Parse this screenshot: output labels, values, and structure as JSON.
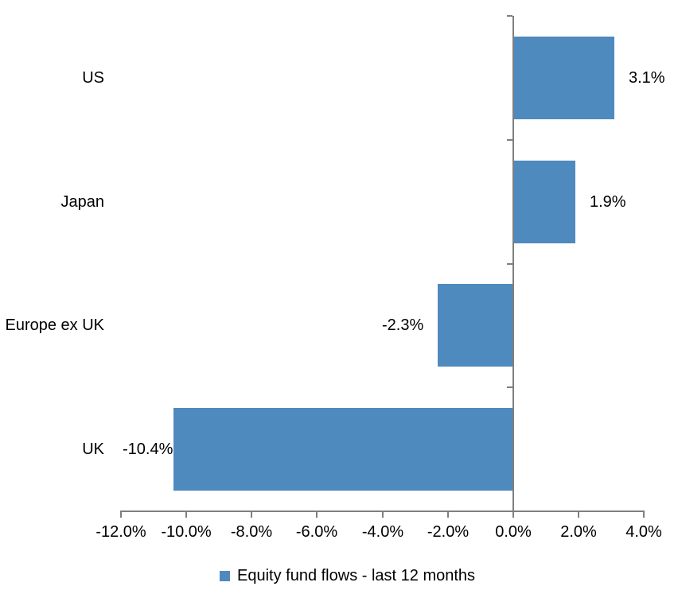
{
  "chart_data": {
    "type": "bar",
    "orientation": "horizontal",
    "title": "",
    "categories": [
      "US",
      "Japan",
      "Europe ex UK",
      "UK"
    ],
    "series": [
      {
        "name": "Equity fund flows - last 12 months",
        "values": [
          3.1,
          1.9,
          -2.3,
          -10.4
        ],
        "data_labels": [
          "3.1%",
          "1.9%",
          "-2.3%",
          "-10.4%"
        ]
      }
    ],
    "xlim": [
      -12,
      4
    ],
    "x_ticks": [
      -12,
      -10,
      -8,
      -6,
      -4,
      -2,
      0,
      2,
      4
    ],
    "x_tick_labels": [
      "-12.0%",
      "-10.0%",
      "-8.0%",
      "-6.0%",
      "-4.0%",
      "-2.0%",
      "0.0%",
      "2.0%",
      "4.0%"
    ],
    "grid": false,
    "legend_position": "bottom-center"
  },
  "colors": {
    "bar": "#4E8ABE",
    "axis": "#7F7F7F",
    "text": "#000000",
    "background": "#FFFFFF"
  },
  "legend": {
    "label": "Equity fund flows - last 12 months"
  }
}
